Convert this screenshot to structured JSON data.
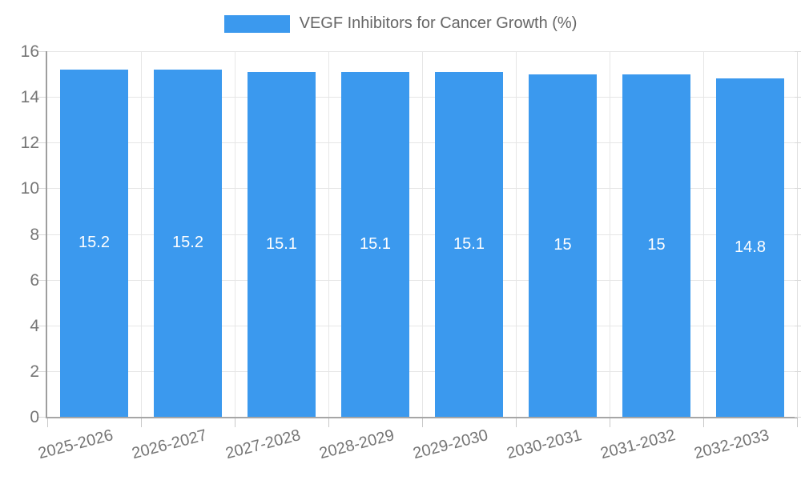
{
  "chart": {
    "legend_label": "VEGF Inhibitors for Cancer Growth (%)"
  },
  "chart_data": {
    "type": "bar",
    "title": "VEGF Inhibitors for Cancer Growth (%)",
    "categories": [
      "2025-2026",
      "2026-2027",
      "2027-2028",
      "2028-2029",
      "2029-2030",
      "2030-2031",
      "2031-2032",
      "2032-2033"
    ],
    "values": [
      15.2,
      15.2,
      15.1,
      15.1,
      15.1,
      15,
      15,
      14.8
    ],
    "bar_labels": [
      "15.2",
      "15.2",
      "15.1",
      "15.1",
      "15.1",
      "15",
      "15",
      "14.8"
    ],
    "xlabel": "",
    "ylabel": "",
    "ylim": [
      0,
      16
    ],
    "yticks": [
      0,
      2,
      4,
      6,
      8,
      10,
      12,
      14,
      16
    ],
    "grid": true,
    "legend_position": "top-center",
    "colors": {
      "bar": "#3B99EE",
      "grid_line": "#E6E6E6",
      "axis_line": "#9E9E9E",
      "tick_label": "#757575",
      "legend_text": "#666666",
      "bar_value_label": "#FFFFFF"
    }
  }
}
